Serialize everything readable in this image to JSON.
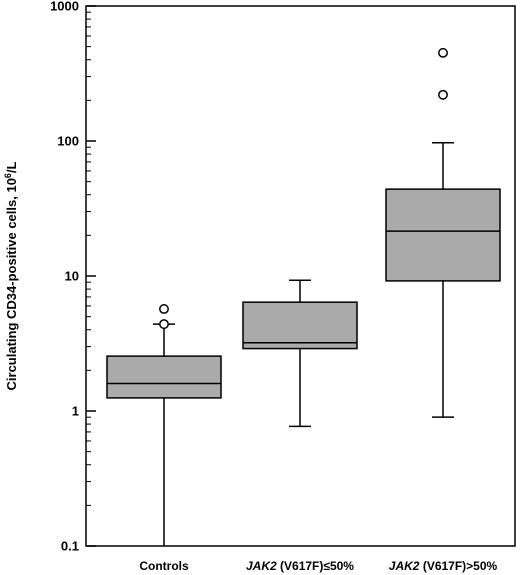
{
  "chart_data": {
    "type": "box",
    "ylabel": {
      "text": "Circulating CD34-positive cells, 10",
      "sup": "6",
      "suffix": "/L"
    },
    "yscale": "log",
    "ylim": [
      0.1,
      1000
    ],
    "yticks": [
      {
        "value": 0.1,
        "label": "0.1"
      },
      {
        "value": 1,
        "label": "1"
      },
      {
        "value": 10,
        "label": "10"
      },
      {
        "value": 100,
        "label": "100"
      },
      {
        "value": 1000,
        "label": "1000"
      }
    ],
    "categories": [
      {
        "italic": "",
        "rest": "Controls"
      },
      {
        "italic": "JAK2",
        "rest": " (V617F)≤50%"
      },
      {
        "italic": "JAK2",
        "rest": " (V617F)>50%"
      }
    ],
    "boxes": [
      {
        "whisker_low": 0.1,
        "q1": 1.25,
        "median": 1.6,
        "q3": 2.55,
        "whisker_high": 4.4,
        "outliers": [
          4.4,
          5.7
        ]
      },
      {
        "whisker_low": 0.77,
        "q1": 2.9,
        "median": 3.2,
        "q3": 6.4,
        "whisker_high": 9.3,
        "outliers": []
      },
      {
        "whisker_low": 0.9,
        "q1": 9.2,
        "median": 21.5,
        "q3": 44,
        "whisker_high": 97,
        "outliers": [
          220,
          450
        ]
      }
    ],
    "box_color": "#aaaaaa",
    "grid": false,
    "legend": "none"
  }
}
